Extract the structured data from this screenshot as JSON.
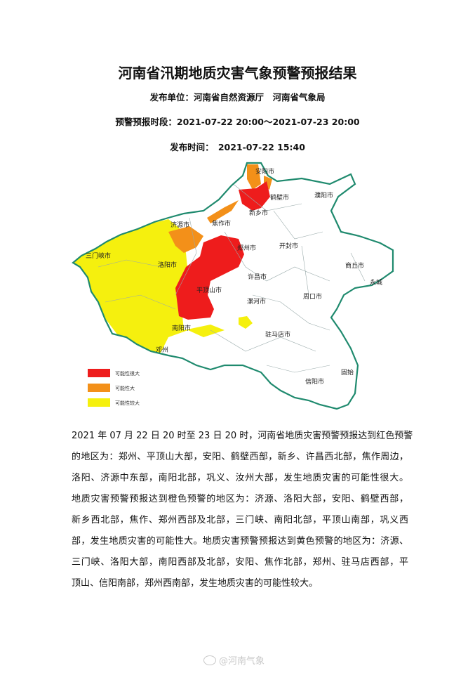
{
  "header": {
    "title": "河南省汛期地质灾害气象预警预报结果",
    "publisher": "发布单位：河南省自然资源厅　河南省气象局",
    "period": "预警预报时段：2021-07-22 20:00～2021-07-23 20:00",
    "publish_time": "发布时间：　2021-07-22 15:40"
  },
  "map": {
    "cities": [
      "安阳市",
      "鹤壁市",
      "濮阳市",
      "新乡市",
      "济源市",
      "焦作市",
      "郑州市",
      "开封市",
      "三门峡市",
      "洛阳市",
      "许昌市",
      "商丘市",
      "永城",
      "平顶山市",
      "漯河市",
      "周口市",
      "南阳市",
      "驻马店市",
      "邓州",
      "信阳市",
      "固始"
    ],
    "legend": [
      {
        "label": "可能性很大",
        "color": "#ee1c1c"
      },
      {
        "label": "可能性大",
        "color": "#f39019"
      },
      {
        "label": "可能性较大",
        "color": "#f5f00e"
      }
    ],
    "border_color": "#1f8a6e"
  },
  "paragraph_lines": [
    "2021 年 07 月 22 日 20 时至 23 日 20 时，河南省地质灾害预警预报达到红色预警",
    "的地区为：郑州、平顶山大部，安阳、鹤壁西部，新乡、许昌西北部，焦作周边，",
    "洛阳、济源中东部，南阳北部，巩义、汝州大部，发生地质灾害的可能性很大。",
    "地质灾害预警预报达到橙色预警的地区为：济源、洛阳大部，安阳、鹤壁西部，",
    "新乡西北部，焦作、郑州西部及北部，三门峡、南阳北部，平顶山南部，巩义西",
    "部，发生地质灾害的可能性大。地质灾害预警预报达到黄色预警的地区为：济源、",
    "三门峡、洛阳大部，南阳西部及北部，安阳、焦作北部，郑州、驻马店西部，平",
    "顶山、信阳南部，郑州西南部，发生地质灾害的可能性较大。"
  ],
  "watermark": {
    "text": "@河南气象",
    "icon": "weibo-icon"
  }
}
